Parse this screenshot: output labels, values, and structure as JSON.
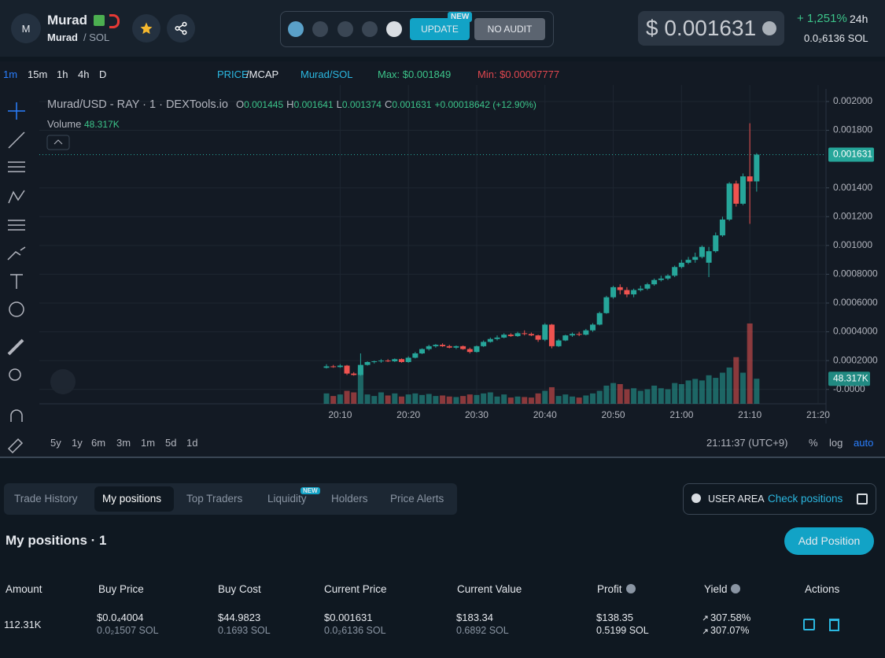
{
  "header": {
    "avatar": "M",
    "name": "Murad",
    "pair_base": "Murad",
    "pair_quote": "/ SOL",
    "buttons": [
      "UPDATE",
      "NO AUDIT"
    ],
    "new_badge": "NEW",
    "price": "$ 0.001631",
    "change": "+ 1,251%",
    "period": "24h",
    "price_sol": "0.0₂6136 SOL"
  },
  "toolbar": {
    "intervals": [
      "1m",
      "15m",
      "1h",
      "4h",
      "D"
    ],
    "price": "PRICE",
    "mcap": "/MCAP",
    "pair": "Murad/SOL",
    "max": "Max: $0.001849",
    "min": "Min: $0.00007777"
  },
  "chart_data": {
    "type": "candlestick",
    "title": "Murad/USD - RAY · 1 · DEXTools.io",
    "ohlc_labels": [
      "O",
      "H",
      "L",
      "C"
    ],
    "change": "+0.00018642 (+12.90%)",
    "grid": true,
    "up_color": "#26a69a",
    "down_color": "#ef5350",
    "categories": [
      null,
      null,
      "20:10",
      null,
      null,
      null,
      null,
      null,
      null,
      null,
      null,
      null,
      "20:20",
      null,
      null,
      null,
      null,
      null,
      null,
      null,
      null,
      null,
      "20:30",
      null,
      null,
      null,
      null,
      null,
      null,
      null,
      null,
      null,
      "20:40",
      null,
      null,
      null,
      null,
      null,
      null,
      null,
      null,
      null,
      "20:50",
      null,
      null,
      null,
      null,
      null,
      null,
      null,
      null,
      null,
      "21:00",
      null,
      null,
      null,
      null,
      null,
      null,
      null,
      null,
      null,
      "21:10",
      null,
      null,
      null,
      null,
      null,
      null,
      null,
      null,
      null,
      "21:20",
      null
    ],
    "open": [
      0.00015,
      0.00016,
      0.000155,
      0.000165,
      0.00011,
      0.0001,
      0.00017,
      0.00019,
      0.000195,
      0.0002,
      0.000195,
      0.00021,
      0.00019,
      0.00022,
      0.00025,
      0.00028,
      0.0003,
      0.00031,
      0.0003,
      0.00029,
      0.0003,
      0.00028,
      0.00026,
      0.0003,
      0.00033,
      0.00035,
      0.00036,
      0.00038,
      0.00037,
      0.00039,
      0.000385,
      0.000375,
      0.000345,
      0.00045,
      0.0003,
      0.00034,
      0.000375,
      0.000385,
      0.00038,
      0.00041,
      0.00045,
      0.00053,
      0.00064,
      0.00071,
      0.00069,
      0.00066,
      0.00069,
      0.0007,
      0.00073,
      0.00076,
      0.00077,
      0.00079,
      0.00085,
      0.00088,
      0.0009,
      0.00092,
      0.00088,
      0.00096,
      0.00107,
      0.00118,
      0.00143,
      0.00129,
      0.00148,
      0.001445,
      null,
      null,
      null,
      null,
      null,
      null,
      null,
      null,
      null,
      null
    ],
    "high": [
      0.000175,
      0.00017,
      0.000175,
      0.00017,
      0.00012,
      0.00025,
      0.000195,
      0.0002,
      0.00021,
      0.00021,
      0.000215,
      0.000215,
      0.00023,
      0.00026,
      0.000285,
      0.00031,
      0.000315,
      0.00032,
      0.00031,
      0.000305,
      0.000305,
      0.00029,
      0.000305,
      0.00034,
      0.00036,
      0.000375,
      0.00039,
      0.00039,
      0.0004,
      0.00041,
      0.000395,
      0.00038,
      0.00046,
      0.000455,
      0.00035,
      0.00038,
      0.000395,
      0.0004,
      0.00042,
      0.00046,
      0.00054,
      0.00065,
      0.00072,
      0.00073,
      0.00071,
      0.0007,
      0.00072,
      0.00074,
      0.00077,
      0.00079,
      0.0008,
      0.00086,
      0.0009,
      0.00092,
      0.00095,
      0.001,
      0.00099,
      0.00109,
      0.0012,
      0.00144,
      0.00145,
      0.0015,
      0.001849,
      0.001641,
      null,
      null,
      null,
      null,
      null,
      null,
      null,
      null,
      null,
      null
    ],
    "low": [
      0.000145,
      0.00015,
      0.00015,
      0.0001,
      9.5e-05,
      9.5e-05,
      0.000165,
      0.00018,
      0.000185,
      0.00019,
      0.00019,
      0.000185,
      0.000185,
      0.000215,
      0.000245,
      0.00027,
      0.00029,
      0.000295,
      0.000285,
      0.00028,
      0.000275,
      0.00025,
      0.000255,
      0.000295,
      0.000325,
      0.00034,
      0.000355,
      0.000365,
      0.000365,
      0.000375,
      0.00037,
      0.00033,
      0.000335,
      0.000285,
      0.000295,
      0.000335,
      0.000365,
      0.00037,
      0.000375,
      0.0004,
      0.000445,
      0.000525,
      0.00063,
      0.00066,
      0.00064,
      0.00064,
      0.00068,
      0.00069,
      0.00072,
      0.00075,
      0.00076,
      0.00078,
      0.00084,
      0.00087,
      0.00088,
      0.00091,
      0.00078,
      0.00095,
      0.00106,
      0.00117,
      0.00127,
      0.00128,
      0.00115,
      0.001374,
      null,
      null,
      null,
      null,
      null,
      null,
      null,
      null,
      null,
      null
    ],
    "close": [
      0.00016,
      0.000155,
      0.000165,
      0.00011,
      0.0001,
      0.00017,
      0.00019,
      0.000195,
      0.0002,
      0.000195,
      0.00021,
      0.00019,
      0.00022,
      0.00025,
      0.00028,
      0.0003,
      0.00031,
      0.0003,
      0.00029,
      0.0003,
      0.00028,
      0.00026,
      0.0003,
      0.00033,
      0.00035,
      0.00036,
      0.00038,
      0.00037,
      0.00039,
      0.000385,
      0.000375,
      0.000345,
      0.00045,
      0.0003,
      0.00034,
      0.000375,
      0.000385,
      0.00038,
      0.00041,
      0.00045,
      0.00053,
      0.00064,
      0.00071,
      0.00069,
      0.00066,
      0.00069,
      0.0007,
      0.00073,
      0.00076,
      0.00077,
      0.00079,
      0.00085,
      0.00088,
      0.0009,
      0.00092,
      0.00099,
      0.00096,
      0.00107,
      0.00118,
      0.00143,
      0.00129,
      0.00148,
      0.001445,
      0.001631,
      null,
      null,
      null,
      null,
      null,
      null,
      null,
      null,
      null,
      null
    ],
    "volume": {
      "name": "Volume",
      "ylim": [
        0,
        600000
      ],
      "values": [
        20000,
        15000,
        18000,
        25000,
        22000,
        70000,
        18000,
        15000,
        22000,
        16000,
        20000,
        14000,
        18000,
        20000,
        17000,
        19000,
        15000,
        16000,
        14000,
        13000,
        15000,
        18000,
        17000,
        20000,
        22000,
        14000,
        18000,
        12000,
        14000,
        13000,
        12000,
        20000,
        25000,
        32000,
        15000,
        18000,
        14000,
        12000,
        16000,
        20000,
        25000,
        35000,
        40000,
        38000,
        28000,
        30000,
        25000,
        28000,
        35000,
        30000,
        28000,
        40000,
        38000,
        45000,
        48000,
        45000,
        55000,
        50000,
        60000,
        70000,
        90000,
        60000,
        155000,
        48317,
        null,
        null,
        null,
        null,
        null,
        null,
        null,
        null,
        null,
        null
      ],
      "value_labels": [
        null,
        null,
        null,
        null,
        null,
        null,
        null,
        null,
        null,
        null,
        null,
        null,
        null,
        null,
        null,
        null,
        null,
        null,
        null,
        null,
        null,
        null,
        null,
        null,
        null,
        null,
        null,
        null,
        null,
        null,
        null,
        null,
        null,
        null,
        null,
        null,
        null,
        null,
        null,
        null,
        null,
        null,
        null,
        null,
        null,
        null,
        null,
        null,
        null,
        null,
        null,
        null,
        null,
        null,
        null,
        null,
        null,
        null,
        null,
        null,
        null,
        null,
        null,
        "48.317K",
        null,
        null,
        null,
        null,
        null,
        null,
        null,
        null,
        null,
        null
      ]
    },
    "ylim": [
      -0.0001,
      0.00206
    ],
    "yticks": [
      {
        "value": 0.002,
        "label": "0.002000"
      },
      {
        "value": 0.0018,
        "label": "0.001800"
      },
      {
        "value": 0.0014,
        "label": "0.001400"
      },
      {
        "value": 0.0012,
        "label": "0.001200"
      },
      {
        "value": 0.001,
        "label": "0.001000"
      },
      {
        "value": 0.0008,
        "label": "0.0008000"
      },
      {
        "value": 0.0006,
        "label": "0.0006000"
      },
      {
        "value": 0.0004,
        "label": "0.0004000"
      },
      {
        "value": 0.0002,
        "label": "0.0002000"
      },
      {
        "value": 0,
        "label": "-0.0000"
      }
    ]
  },
  "range_bar": {
    "ranges": [
      "5y",
      "1y",
      "6m",
      "3m",
      "1m",
      "5d",
      "1d"
    ],
    "time": "21:11:37 (UTC+9)",
    "percent": "%",
    "log": "log",
    "auto": "auto"
  },
  "tabs": {
    "items": [
      "Trade History",
      "My positions",
      "Top Traders",
      "Liquidity",
      "Holders",
      "Price Alerts"
    ],
    "new_badge": "NEW"
  },
  "user_area": {
    "label": "USER AREA",
    "link": "Check positions"
  },
  "positions": {
    "title": "My positions · 1",
    "add": "Add Position",
    "headers": [
      "Amount",
      "Buy Price",
      "Buy Cost",
      "Current Price",
      "Current Value",
      "Profit",
      "Yield",
      "Actions"
    ],
    "row": [
      [
        "112.31K"
      ],
      [
        "$0.0₄4004",
        "0.0₂1507 SOL"
      ],
      [
        "$44.9823",
        "0.1693 SOL"
      ],
      [
        "$0.001631",
        "0.0₂6136 SOL"
      ],
      [
        "$183.34",
        "0.6892 SOL"
      ],
      [
        "$138.35",
        "0.5199 SOL"
      ],
      [
        "307.58%",
        "307.07%"
      ]
    ]
  }
}
